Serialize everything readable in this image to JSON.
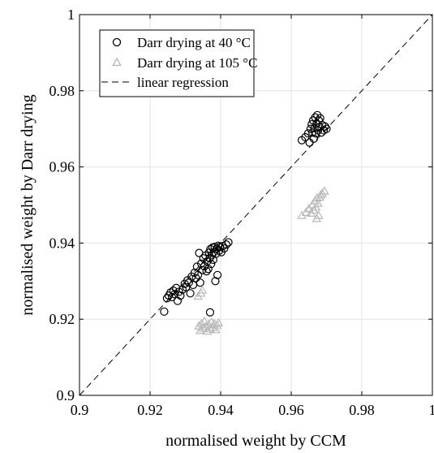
{
  "chart_data": {
    "type": "scatter",
    "title": "",
    "xlabel": "normalised weight by CCM",
    "ylabel": "normalised weight by Darr drying",
    "xlim": [
      0.9,
      1.0
    ],
    "ylim": [
      0.9,
      1.0
    ],
    "xticks": [
      {
        "value": 0.9,
        "label": "0.9"
      },
      {
        "value": 0.92,
        "label": "0.92"
      },
      {
        "value": 0.94,
        "label": "0.94"
      },
      {
        "value": 0.96,
        "label": "0.96"
      },
      {
        "value": 0.98,
        "label": "0.98"
      },
      {
        "value": 1.0,
        "label": "1"
      }
    ],
    "yticks": [
      {
        "value": 0.9,
        "label": "0.9"
      },
      {
        "value": 0.92,
        "label": "0.92"
      },
      {
        "value": 0.94,
        "label": "0.94"
      },
      {
        "value": 0.96,
        "label": "0.96"
      },
      {
        "value": 0.98,
        "label": "0.98"
      },
      {
        "value": 1.0,
        "label": "1"
      }
    ],
    "grid": true,
    "legend_position": "top-left",
    "series": [
      {
        "name": "Darr drying at 40 °C",
        "marker": "circle",
        "color": "#000000",
        "points": [
          [
            0.924,
            0.922
          ],
          [
            0.9248,
            0.9255
          ],
          [
            0.9253,
            0.9262
          ],
          [
            0.9258,
            0.927
          ],
          [
            0.9262,
            0.9258
          ],
          [
            0.9266,
            0.9275
          ],
          [
            0.927,
            0.9266
          ],
          [
            0.9274,
            0.9282
          ],
          [
            0.9278,
            0.9248
          ],
          [
            0.9282,
            0.9272
          ],
          [
            0.9286,
            0.9262
          ],
          [
            0.9292,
            0.9278
          ],
          [
            0.9298,
            0.9293
          ],
          [
            0.9302,
            0.9284
          ],
          [
            0.9306,
            0.9302
          ],
          [
            0.931,
            0.9296
          ],
          [
            0.9314,
            0.9268
          ],
          [
            0.9318,
            0.9312
          ],
          [
            0.9322,
            0.929
          ],
          [
            0.9326,
            0.9322
          ],
          [
            0.933,
            0.9308
          ],
          [
            0.9333,
            0.9338
          ],
          [
            0.9336,
            0.9316
          ],
          [
            0.9339,
            0.9374
          ],
          [
            0.9342,
            0.9296
          ],
          [
            0.9345,
            0.9346
          ],
          [
            0.9348,
            0.9329
          ],
          [
            0.9351,
            0.936
          ],
          [
            0.9354,
            0.9339
          ],
          [
            0.9357,
            0.9367
          ],
          [
            0.936,
            0.9326
          ],
          [
            0.9362,
            0.9352
          ],
          [
            0.9365,
            0.9332
          ],
          [
            0.9367,
            0.9375
          ],
          [
            0.9369,
            0.936
          ],
          [
            0.9371,
            0.9384
          ],
          [
            0.9373,
            0.9345
          ],
          [
            0.9375,
            0.9368
          ],
          [
            0.9377,
            0.9388
          ],
          [
            0.9379,
            0.9356
          ],
          [
            0.9381,
            0.9376
          ],
          [
            0.9383,
            0.939
          ],
          [
            0.9385,
            0.93
          ],
          [
            0.9387,
            0.9372
          ],
          [
            0.9389,
            0.9385
          ],
          [
            0.9391,
            0.9316
          ],
          [
            0.9393,
            0.9393
          ],
          [
            0.9396,
            0.938
          ],
          [
            0.9398,
            0.939
          ],
          [
            0.9402,
            0.9376
          ],
          [
            0.9406,
            0.9392
          ],
          [
            0.941,
            0.9386
          ],
          [
            0.9416,
            0.9396
          ],
          [
            0.9422,
            0.9402
          ],
          [
            0.937,
            0.9218
          ],
          [
            0.963,
            0.967
          ],
          [
            0.964,
            0.9678
          ],
          [
            0.9648,
            0.9688
          ],
          [
            0.9652,
            0.9664
          ],
          [
            0.9655,
            0.97
          ],
          [
            0.9658,
            0.9712
          ],
          [
            0.966,
            0.969
          ],
          [
            0.9662,
            0.9722
          ],
          [
            0.9664,
            0.9674
          ],
          [
            0.9666,
            0.9702
          ],
          [
            0.9668,
            0.973
          ],
          [
            0.967,
            0.9688
          ],
          [
            0.9672,
            0.9714
          ],
          [
            0.9674,
            0.9736
          ],
          [
            0.9676,
            0.9696
          ],
          [
            0.9678,
            0.9722
          ],
          [
            0.968,
            0.9705
          ],
          [
            0.9682,
            0.9728
          ],
          [
            0.9685,
            0.969
          ],
          [
            0.9688,
            0.971
          ],
          [
            0.9692,
            0.9696
          ],
          [
            0.9696,
            0.9706
          ],
          [
            0.97,
            0.97
          ]
        ]
      },
      {
        "name": "Darr drying at 105 °C",
        "marker": "triangle",
        "color": "#b8b8b8",
        "points": [
          [
            0.9336,
            0.926
          ],
          [
            0.9338,
            0.9182
          ],
          [
            0.9342,
            0.917
          ],
          [
            0.9346,
            0.9188
          ],
          [
            0.935,
            0.9176
          ],
          [
            0.9354,
            0.9194
          ],
          [
            0.9358,
            0.918
          ],
          [
            0.9362,
            0.9168
          ],
          [
            0.9366,
            0.9186
          ],
          [
            0.937,
            0.9174
          ],
          [
            0.9374,
            0.9192
          ],
          [
            0.9378,
            0.9178
          ],
          [
            0.9382,
            0.9188
          ],
          [
            0.9386,
            0.9172
          ],
          [
            0.939,
            0.9184
          ],
          [
            0.9394,
            0.919
          ],
          [
            0.9344,
            0.9268
          ],
          [
            0.9348,
            0.9276
          ],
          [
            0.963,
            0.9472
          ],
          [
            0.9642,
            0.948
          ],
          [
            0.965,
            0.949
          ],
          [
            0.9656,
            0.9478
          ],
          [
            0.966,
            0.95
          ],
          [
            0.9664,
            0.9486
          ],
          [
            0.9667,
            0.951
          ],
          [
            0.967,
            0.9494
          ],
          [
            0.9673,
            0.9518
          ],
          [
            0.9676,
            0.9504
          ],
          [
            0.968,
            0.952
          ],
          [
            0.9684,
            0.9526
          ],
          [
            0.9688,
            0.953
          ],
          [
            0.9694,
            0.9536
          ],
          [
            0.9672,
            0.9464
          ],
          [
            0.9678,
            0.9472
          ]
        ]
      },
      {
        "name": "linear regression",
        "marker": "dashed-line",
        "color": "#000000",
        "points": [
          [
            0.9,
            0.9
          ],
          [
            1.0,
            1.0
          ]
        ]
      }
    ]
  }
}
